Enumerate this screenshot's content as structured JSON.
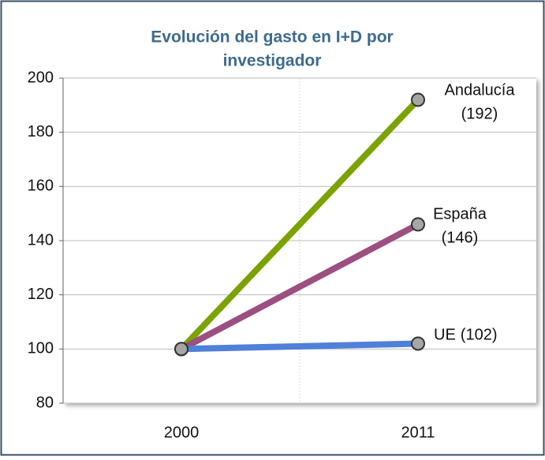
{
  "chart_data": {
    "type": "line",
    "title": [
      "Evolución del gasto en I+D por",
      "investigador"
    ],
    "categories": [
      "2000",
      "2011"
    ],
    "series": [
      {
        "name": "Andalucía",
        "color": "#7ba300",
        "values": [
          100,
          192
        ],
        "value_labels": [
          null,
          "(192)"
        ]
      },
      {
        "name": "España",
        "color": "#9c4f80",
        "values": [
          100,
          146
        ],
        "value_labels": [
          null,
          "(146)"
        ]
      },
      {
        "name": "UE",
        "color": "#4f81d9",
        "values": [
          100,
          102
        ],
        "value_labels": [
          null,
          "(102)"
        ]
      }
    ],
    "ylim": [
      80,
      200
    ],
    "yticks": [
      80,
      100,
      120,
      140,
      160,
      180,
      200
    ],
    "grid": true
  }
}
